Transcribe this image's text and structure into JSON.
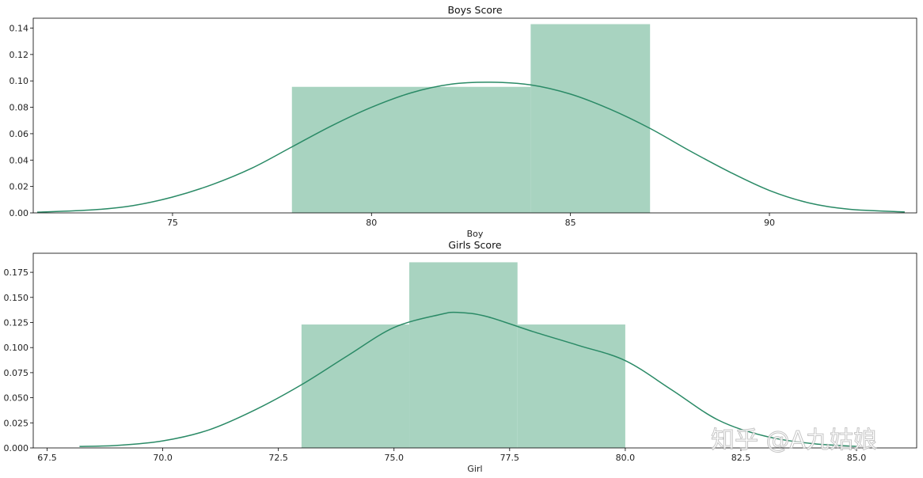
{
  "watermark": "知乎 @A九姑娘",
  "colors": {
    "bar": "#a8d3c0",
    "kde": "#2a8a66",
    "axis": "#000000"
  },
  "chart_data": [
    {
      "type": "bar",
      "title": "Boys Score",
      "xlabel": "Boy",
      "ylabel": "",
      "xlim": [
        71.5,
        93.7
      ],
      "ylim": [
        0,
        0.1475
      ],
      "xticks": [
        75,
        80,
        85,
        90
      ],
      "xtick_labels": [
        "75",
        "80",
        "85",
        "90"
      ],
      "yticks": [
        0,
        0.02,
        0.04,
        0.06,
        0.08,
        0.1,
        0.12,
        0.14
      ],
      "ytick_labels": [
        "0.00",
        "0.02",
        "0.04",
        "0.06",
        "0.08",
        "0.10",
        "0.12",
        "0.14"
      ],
      "bins": [
        {
          "start": 78,
          "end": 84,
          "density": 0.0955
        },
        {
          "start": 84,
          "end": 87,
          "density": 0.143
        }
      ],
      "kde": {
        "x": [
          71.6,
          73,
          74,
          75,
          76,
          77,
          78,
          79,
          80,
          81,
          82,
          83,
          84,
          85,
          86,
          87,
          88,
          89,
          90,
          91,
          92,
          93.4
        ],
        "y": [
          0.0005,
          0.0023,
          0.0055,
          0.012,
          0.0215,
          0.034,
          0.05,
          0.066,
          0.08,
          0.091,
          0.0975,
          0.099,
          0.097,
          0.09,
          0.0785,
          0.064,
          0.047,
          0.031,
          0.017,
          0.0075,
          0.0028,
          0.0007
        ]
      }
    },
    {
      "type": "bar",
      "title": "Girls Score",
      "xlabel": "Girl",
      "ylabel": "",
      "xlim": [
        67.2,
        86.3
      ],
      "ylim": [
        0,
        0.194
      ],
      "xticks": [
        67.5,
        70.0,
        72.5,
        75.0,
        77.5,
        80.0,
        82.5,
        85.0
      ],
      "xtick_labels": [
        "67.5",
        "70.0",
        "72.5",
        "75.0",
        "77.5",
        "80.0",
        "82.5",
        "85.0"
      ],
      "yticks": [
        0,
        0.025,
        0.05,
        0.075,
        0.1,
        0.125,
        0.15,
        0.175
      ],
      "ytick_labels": [
        "0.000",
        "0.025",
        "0.050",
        "0.075",
        "0.100",
        "0.125",
        "0.150",
        "0.175"
      ],
      "bins": [
        {
          "start": 73.0,
          "end": 75.33,
          "density": 0.123
        },
        {
          "start": 75.33,
          "end": 77.67,
          "density": 0.185
        },
        {
          "start": 77.67,
          "end": 80.0,
          "density": 0.123
        }
      ],
      "kde": {
        "x": [
          68.2,
          69,
          70,
          71,
          72,
          73,
          74,
          75,
          76,
          76.4,
          77,
          78,
          79,
          80,
          81,
          82,
          83,
          84,
          85.0
        ],
        "y": [
          0.0015,
          0.0025,
          0.007,
          0.018,
          0.038,
          0.063,
          0.092,
          0.12,
          0.133,
          0.135,
          0.131,
          0.116,
          0.102,
          0.087,
          0.058,
          0.028,
          0.012,
          0.0045,
          0.0015
        ]
      }
    }
  ]
}
